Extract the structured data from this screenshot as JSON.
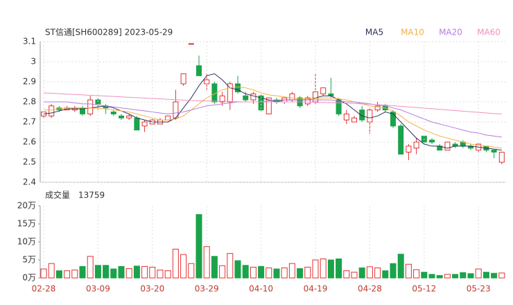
{
  "chart_data": [
    {
      "type": "candlestick",
      "title": "ST信通[SH600289] 2023-05-29",
      "up_color": "#e0302f",
      "down_color": "#1aa34a",
      "ylim": [
        2.4,
        3.1
      ],
      "yticks": [
        2.4,
        2.5,
        2.6,
        2.7,
        2.8,
        2.9,
        3,
        3.1
      ],
      "grid": true,
      "legend": "top-right",
      "open": [
        2.73,
        2.73,
        2.77,
        2.76,
        2.76,
        2.77,
        2.74,
        2.81,
        2.78,
        2.75,
        2.73,
        2.72,
        2.72,
        2.68,
        2.69,
        2.69,
        2.71,
        2.72,
        2.89,
        3.09,
        2.98,
        2.89,
        2.89,
        2.8,
        2.8,
        2.89,
        2.83,
        2.81,
        2.83,
        2.74,
        2.81,
        2.8,
        2.81,
        2.82,
        2.79,
        2.8,
        2.84,
        2.84,
        2.81,
        2.71,
        2.7,
        2.76,
        2.7,
        2.76,
        2.78,
        2.75,
        2.68,
        2.55,
        2.57,
        2.63,
        2.61,
        2.58,
        2.56,
        2.59,
        2.6,
        2.58,
        2.56,
        2.58,
        2.56,
        2.5
      ],
      "high": [
        2.75,
        2.79,
        2.78,
        2.78,
        2.78,
        2.78,
        2.83,
        2.82,
        2.79,
        2.76,
        2.74,
        2.74,
        2.73,
        2.71,
        2.72,
        2.72,
        2.73,
        2.86,
        2.94,
        3.09,
        3.03,
        2.94,
        2.9,
        2.85,
        2.9,
        2.93,
        2.85,
        2.85,
        2.84,
        2.82,
        2.82,
        2.82,
        2.85,
        2.83,
        2.83,
        2.94,
        2.87,
        2.92,
        2.82,
        2.76,
        2.73,
        2.78,
        2.77,
        2.8,
        2.79,
        2.76,
        2.69,
        2.59,
        2.62,
        2.63,
        2.62,
        2.59,
        2.6,
        2.6,
        2.61,
        2.59,
        2.59,
        2.58,
        2.56,
        2.55
      ],
      "low": [
        2.72,
        2.72,
        2.75,
        2.76,
        2.75,
        2.73,
        2.73,
        2.76,
        2.74,
        2.73,
        2.71,
        2.71,
        2.66,
        2.65,
        2.69,
        2.69,
        2.71,
        2.71,
        2.88,
        3.09,
        2.93,
        2.86,
        2.79,
        2.78,
        2.76,
        2.84,
        2.8,
        2.79,
        2.75,
        2.74,
        2.79,
        2.79,
        2.8,
        2.77,
        2.78,
        2.79,
        2.83,
        2.82,
        2.73,
        2.69,
        2.7,
        2.7,
        2.64,
        2.75,
        2.75,
        2.67,
        2.54,
        2.51,
        2.54,
        2.59,
        2.59,
        2.56,
        2.56,
        2.57,
        2.57,
        2.56,
        2.55,
        2.55,
        2.52,
        2.49
      ],
      "close": [
        2.75,
        2.78,
        2.76,
        2.77,
        2.77,
        2.74,
        2.81,
        2.79,
        2.77,
        2.74,
        2.72,
        2.73,
        2.66,
        2.7,
        2.71,
        2.71,
        2.73,
        2.8,
        2.94,
        3.09,
        2.93,
        2.91,
        2.8,
        2.83,
        2.89,
        2.85,
        2.81,
        2.84,
        2.76,
        2.82,
        2.8,
        2.82,
        2.84,
        2.78,
        2.82,
        2.85,
        2.87,
        2.83,
        2.74,
        2.74,
        2.72,
        2.71,
        2.76,
        2.78,
        2.76,
        2.68,
        2.54,
        2.58,
        2.6,
        2.6,
        2.6,
        2.56,
        2.6,
        2.58,
        2.58,
        2.57,
        2.59,
        2.56,
        2.55,
        2.55
      ],
      "series": [
        {
          "name": "MA5",
          "color": "#2b2f5c",
          "values": [
            2.74,
            2.745,
            2.755,
            2.765,
            2.766,
            2.765,
            2.77,
            2.775,
            2.78,
            2.77,
            2.755,
            2.74,
            2.72,
            2.71,
            2.7,
            2.7,
            2.7,
            2.72,
            2.77,
            2.82,
            2.88,
            2.93,
            2.94,
            2.91,
            2.87,
            2.86,
            2.84,
            2.83,
            2.82,
            2.81,
            2.8,
            2.81,
            2.81,
            2.81,
            2.81,
            2.82,
            2.83,
            2.83,
            2.81,
            2.79,
            2.76,
            2.73,
            2.72,
            2.73,
            2.75,
            2.74,
            2.7,
            2.66,
            2.62,
            2.59,
            2.58,
            2.58,
            2.57,
            2.58,
            2.58,
            2.58,
            2.575,
            2.57,
            2.565,
            2.56
          ]
        },
        {
          "name": "MA10",
          "color": "#f5b042",
          "values": [
            2.76,
            2.76,
            2.765,
            2.77,
            2.77,
            2.77,
            2.77,
            2.768,
            2.765,
            2.76,
            2.755,
            2.75,
            2.74,
            2.73,
            2.72,
            2.71,
            2.71,
            2.715,
            2.73,
            2.76,
            2.79,
            2.82,
            2.84,
            2.86,
            2.87,
            2.875,
            2.87,
            2.86,
            2.845,
            2.835,
            2.83,
            2.825,
            2.82,
            2.815,
            2.815,
            2.815,
            2.82,
            2.82,
            2.815,
            2.81,
            2.8,
            2.79,
            2.78,
            2.775,
            2.77,
            2.755,
            2.73,
            2.7,
            2.68,
            2.66,
            2.645,
            2.63,
            2.62,
            2.61,
            2.6,
            2.59,
            2.585,
            2.58,
            2.575,
            2.57
          ]
        },
        {
          "name": "MA20",
          "color": "#b57be0",
          "values": [
            2.8,
            2.8,
            2.8,
            2.8,
            2.795,
            2.79,
            2.79,
            2.785,
            2.78,
            2.775,
            2.77,
            2.765,
            2.76,
            2.755,
            2.75,
            2.745,
            2.74,
            2.745,
            2.75,
            2.76,
            2.77,
            2.78,
            2.785,
            2.79,
            2.795,
            2.8,
            2.8,
            2.8,
            2.8,
            2.805,
            2.81,
            2.81,
            2.81,
            2.81,
            2.81,
            2.81,
            2.81,
            2.81,
            2.805,
            2.8,
            2.8,
            2.795,
            2.79,
            2.785,
            2.78,
            2.77,
            2.76,
            2.745,
            2.73,
            2.715,
            2.7,
            2.69,
            2.68,
            2.67,
            2.66,
            2.65,
            2.645,
            2.635,
            2.63,
            2.625
          ]
        },
        {
          "name": "MA60",
          "color": "#f090c0",
          "values": [
            2.845,
            2.843,
            2.841,
            2.839,
            2.837,
            2.835,
            2.833,
            2.831,
            2.829,
            2.827,
            2.825,
            2.823,
            2.821,
            2.819,
            2.817,
            2.815,
            2.813,
            2.811,
            2.809,
            2.807,
            2.806,
            2.805,
            2.804,
            2.803,
            2.802,
            2.801,
            2.8,
            2.8,
            2.8,
            2.8,
            2.8,
            2.8,
            2.8,
            2.8,
            2.799,
            2.798,
            2.797,
            2.796,
            2.795,
            2.794,
            2.792,
            2.79,
            2.788,
            2.786,
            2.784,
            2.781,
            2.778,
            2.775,
            2.772,
            2.769,
            2.766,
            2.763,
            2.76,
            2.757,
            2.754,
            2.751,
            2.748,
            2.745,
            2.742,
            2.74
          ]
        }
      ]
    },
    {
      "type": "bar",
      "title": "成交量",
      "categories": [
        "02-28",
        null,
        null,
        null,
        null,
        null,
        null,
        "03-09",
        null,
        null,
        null,
        null,
        null,
        null,
        "03-20",
        null,
        null,
        null,
        null,
        null,
        null,
        "03-29",
        null,
        null,
        null,
        null,
        null,
        null,
        "04-10",
        null,
        null,
        null,
        null,
        null,
        null,
        "04-19",
        null,
        null,
        null,
        null,
        null,
        null,
        "04-28",
        null,
        null,
        null,
        null,
        null,
        null,
        "05-12",
        null,
        null,
        null,
        null,
        null,
        null,
        "05-23",
        null,
        null,
        null
      ],
      "values": [
        25000,
        40000,
        20000,
        20000,
        22000,
        32000,
        60000,
        35000,
        35000,
        25000,
        32000,
        26000,
        33000,
        32000,
        30000,
        22000,
        20000,
        80000,
        65000,
        40000,
        176000,
        87000,
        60000,
        34000,
        68000,
        48000,
        35000,
        30000,
        32000,
        28000,
        25000,
        28000,
        40000,
        26000,
        30000,
        50000,
        53000,
        50000,
        53000,
        20000,
        16000,
        28000,
        31000,
        28000,
        20000,
        40000,
        66000,
        38000,
        23000,
        16000,
        10000,
        7000,
        10000,
        10000,
        15000,
        12000,
        25000,
        16000,
        13000,
        13759
      ],
      "ylim": [
        0,
        200000
      ],
      "yticks": [
        {
          "value": 0,
          "label": "0万"
        },
        {
          "value": 50000,
          "label": "5万"
        },
        {
          "value": 100000,
          "label": "10万"
        },
        {
          "value": 150000,
          "label": "15万"
        },
        {
          "value": 200000,
          "label": "20万"
        }
      ]
    }
  ]
}
